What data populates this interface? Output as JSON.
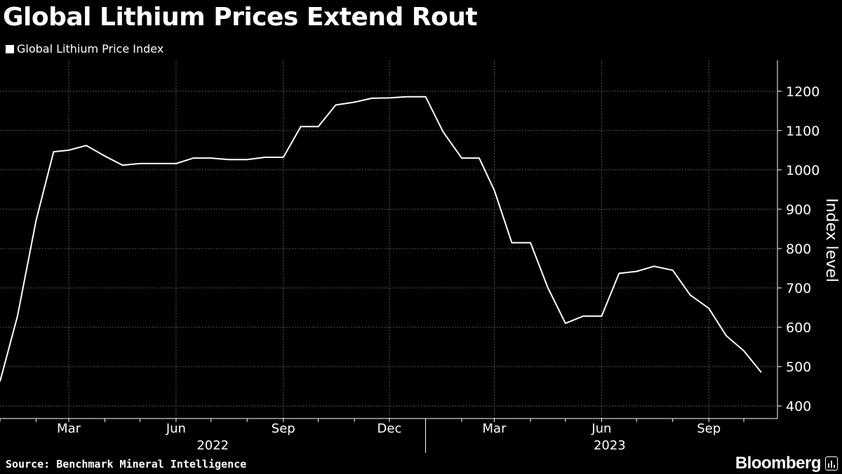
{
  "title": "Global Lithium Prices Extend Rout",
  "legend": {
    "label": "Global Lithium Price Index"
  },
  "source": "Source: Benchmark Mineral Intelligence",
  "brand": "Bloomberg",
  "chart_data": {
    "type": "line",
    "series": [
      {
        "name": "Global Lithium Price Index",
        "color": "#ffffff",
        "x": [
          "2022-01-01",
          "2022-01-16",
          "2022-02-01",
          "2022-02-16",
          "2022-03-01",
          "2022-03-16",
          "2022-04-01",
          "2022-04-16",
          "2022-05-01",
          "2022-05-16",
          "2022-06-01",
          "2022-06-16",
          "2022-07-01",
          "2022-07-16",
          "2022-08-01",
          "2022-08-16",
          "2022-09-01",
          "2022-09-16",
          "2022-10-01",
          "2022-10-16",
          "2022-11-01",
          "2022-11-16",
          "2022-12-01",
          "2022-12-16",
          "2023-01-01",
          "2023-01-16",
          "2023-02-01",
          "2023-02-16",
          "2023-03-01",
          "2023-03-16",
          "2023-04-01",
          "2023-04-16",
          "2023-05-01",
          "2023-05-16",
          "2023-06-01",
          "2023-06-16",
          "2023-07-01",
          "2023-07-16",
          "2023-08-01",
          "2023-08-16",
          "2023-09-01",
          "2023-09-16",
          "2023-10-01",
          "2023-10-16"
        ],
        "values": [
          462,
          628,
          872,
          1046,
          1050,
          1062,
          1035,
          1012,
          1016,
          1016,
          1016,
          1030,
          1030,
          1026,
          1026,
          1032,
          1032,
          1110,
          1110,
          1165,
          1172,
          1182,
          1183,
          1186,
          1186,
          1097,
          1030,
          1030,
          948,
          815,
          815,
          700,
          610,
          628,
          628,
          737,
          742,
          755,
          745,
          682,
          648,
          578,
          540,
          485
        ]
      }
    ],
    "y_ticks": [
      400,
      500,
      600,
      700,
      800,
      900,
      1000,
      1100,
      1200
    ],
    "ylim": [
      368,
      1264
    ],
    "ylabel": "Index level",
    "x_ticks": [
      {
        "date": "2022-03-01",
        "label": "Mar"
      },
      {
        "date": "2022-06-01",
        "label": "Jun"
      },
      {
        "date": "2022-09-01",
        "label": "Sep"
      },
      {
        "date": "2022-12-01",
        "label": "Dec"
      },
      {
        "date": "2023-03-01",
        "label": "Mar"
      },
      {
        "date": "2023-06-01",
        "label": "Jun"
      },
      {
        "date": "2023-09-01",
        "label": "Sep"
      }
    ],
    "year_labels": [
      {
        "year": "2022"
      },
      {
        "year": "2023"
      }
    ],
    "grid": true
  }
}
